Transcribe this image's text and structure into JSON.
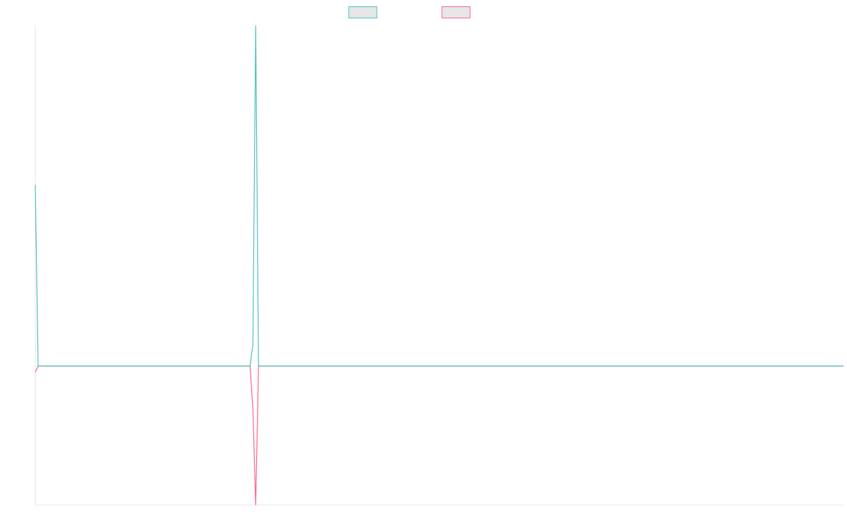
{
  "chart_data": {
    "type": "line",
    "x": [
      0,
      1,
      76,
      77,
      78,
      79,
      286
    ],
    "xlim": [
      0,
      286
    ],
    "ylim": [
      -1.97,
      4.83
    ],
    "series": [
      {
        "color": "#4bc0c0",
        "values": [
          2.57,
          0,
          0,
          0.31,
          4.83,
          0,
          0
        ]
      },
      {
        "color": "#ff6384",
        "values": [
          -0.09,
          0,
          0,
          -0.61,
          -1.97,
          0,
          0
        ]
      }
    ]
  }
}
